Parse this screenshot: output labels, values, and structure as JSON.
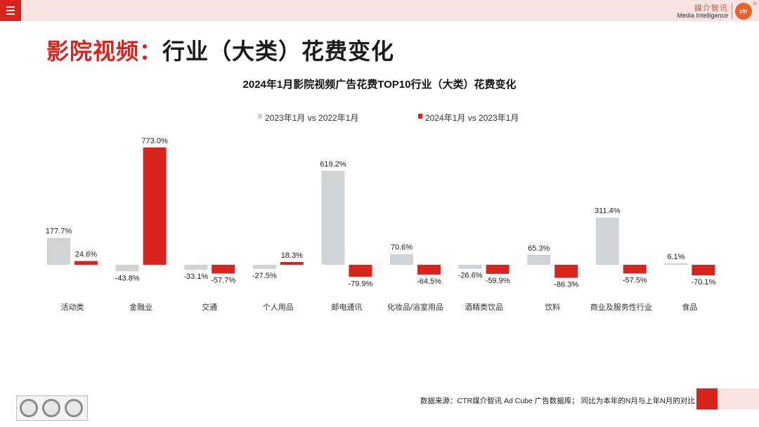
{
  "page": {
    "title_accent": "影院视频：",
    "title_rest": "行业（大类）花费变化"
  },
  "brand": {
    "logo_cn": "媒介智讯",
    "logo_en": "Media Intelligence",
    "logo_mark": "ctr"
  },
  "footer": {
    "source": "数据来源：CTR媒介智讯 Ad Cube 广告数据库； 同比为本年的N月与上年N月的对比"
  },
  "colors": {
    "accent": "#d9231d",
    "series_gray": "#cfd3d6",
    "series_red": "#d9231d",
    "band": "#f8e3e3"
  },
  "chart_data": {
    "type": "bar",
    "title": "2024年1月影院视频广告花费TOP10行业（大类）花费变化",
    "categories": [
      "活动类",
      "金融业",
      "交通",
      "个人用品",
      "邮电通讯",
      "化妆品/浴室用品",
      "酒精类饮品",
      "饮料",
      "商业及服务性行业",
      "食品"
    ],
    "series": [
      {
        "name": "2023年1月 vs 2022年1月",
        "color": "#cfd3d6",
        "values": [
          177.7,
          -43.8,
          -33.1,
          -27.5,
          619.2,
          70.6,
          -26.6,
          65.3,
          311.4,
          6.1
        ],
        "labels": [
          "177.7%",
          "-43.8%",
          "-33.1%",
          "-27.5%",
          "619.2%",
          "70.6%",
          "-26.6%",
          "65.3%",
          "311.4%",
          "6.1%"
        ]
      },
      {
        "name": "2024年1月 vs 2023年1月",
        "color": "#d9231d",
        "values": [
          24.6,
          773.0,
          -57.7,
          18.3,
          -79.9,
          -64.5,
          -59.9,
          -86.3,
          -57.5,
          -70.1
        ],
        "labels": [
          "24.6%",
          "773.0%",
          "-57.7%",
          "18.3%",
          "-79.9%",
          "-64.5%",
          "-59.9%",
          "-86.3%",
          "-57.5%",
          "-70.1%"
        ]
      }
    ],
    "legend_position": "top-center",
    "grid": false,
    "ylim": [
      -100,
      800
    ]
  }
}
